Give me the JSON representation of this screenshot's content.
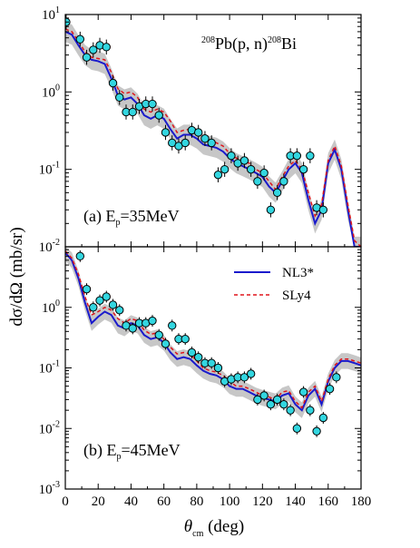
{
  "figure": {
    "title": "²⁰⁸Pb(p, n)²⁰⁸Bi",
    "ylabel": "dσ/dΩ (mb/sr)",
    "xlabel": "θcm (deg)",
    "xlabel_parts": {
      "theta": "θ",
      "sub": "cm",
      "unit": " (deg)"
    },
    "title_parts": {
      "sup1": "208",
      "main1": "Pb(p, n)",
      "sup2": "208",
      "main2": "Bi"
    }
  },
  "legend": {
    "placement": "top-right of panel b",
    "entries": [
      {
        "name": "NL3*",
        "color": "#1a1acc",
        "style": "solid"
      },
      {
        "name": "SLy4",
        "color": "#e0151b",
        "style": "dashed"
      }
    ]
  },
  "colors": {
    "band": "#bdbdbd",
    "points_fill": "#33d6e0",
    "points_stroke": "#000000",
    "nl3": "#1a1acc",
    "sly4": "#e0151b"
  },
  "chart_data": [
    {
      "type": "scatter",
      "panel_label": "(a) Ep=35MeV",
      "panel_parts": {
        "pre": "(a)  E",
        "sub": "p",
        "post": "=35MeV"
      },
      "xlabel": "θcm (deg)",
      "ylabel": "dσ/dΩ (mb/sr)",
      "xlim": [
        0,
        180
      ],
      "ylim": [
        0.01,
        10
      ],
      "yscale": "log",
      "x_ticks": [
        0,
        20,
        40,
        60,
        80,
        100,
        120,
        140,
        160,
        180
      ],
      "x_tick_labels": [],
      "y_ticks": [
        {
          "base": "10",
          "exp": "-2"
        },
        {
          "base": "10",
          "exp": "-1"
        },
        {
          "base": "10",
          "exp": "0"
        },
        {
          "base": "10",
          "exp": "1"
        }
      ],
      "grid": false,
      "data": {
        "x": [
          0.5,
          9,
          13,
          17,
          21,
          25,
          29,
          33,
          37,
          41,
          45,
          49,
          53,
          57,
          61,
          65,
          69,
          73,
          77,
          81,
          85,
          89,
          93,
          97,
          101,
          105,
          109,
          113,
          117,
          121,
          125,
          129,
          133,
          137,
          141,
          145,
          149,
          153,
          157
        ],
        "y": [
          8.0,
          4.8,
          2.8,
          3.5,
          4.0,
          3.8,
          1.3,
          0.85,
          0.55,
          0.55,
          0.65,
          0.7,
          0.7,
          0.5,
          0.3,
          0.22,
          0.2,
          0.22,
          0.32,
          0.3,
          0.25,
          0.22,
          0.085,
          0.1,
          0.15,
          0.12,
          0.13,
          0.1,
          0.07,
          0.09,
          0.03,
          0.05,
          0.07,
          0.15,
          0.15,
          0.1,
          0.15,
          0.032,
          0.03
        ]
      },
      "series": [
        {
          "name": "NL3*",
          "x": [
            0,
            4,
            8,
            12,
            16,
            20,
            24,
            28,
            32,
            36,
            40,
            44,
            48,
            52,
            56,
            60,
            64,
            68,
            72,
            76,
            80,
            84,
            88,
            92,
            96,
            100,
            104,
            108,
            112,
            116,
            120,
            124,
            128,
            132,
            136,
            140,
            144,
            148,
            152,
            156,
            160,
            164,
            168,
            172,
            176,
            180
          ],
          "y": [
            6.0,
            5.5,
            4.0,
            3.0,
            2.6,
            2.5,
            2.3,
            1.5,
            0.9,
            0.8,
            0.85,
            0.7,
            0.5,
            0.45,
            0.5,
            0.45,
            0.33,
            0.25,
            0.28,
            0.28,
            0.25,
            0.21,
            0.2,
            0.19,
            0.17,
            0.14,
            0.12,
            0.11,
            0.1,
            0.09,
            0.08,
            0.06,
            0.05,
            0.07,
            0.1,
            0.12,
            0.09,
            0.04,
            0.02,
            0.03,
            0.12,
            0.18,
            0.1,
            0.03,
            0.01,
            0.01
          ]
        },
        {
          "name": "SLy4",
          "x": [
            0,
            4,
            8,
            12,
            16,
            20,
            24,
            28,
            32,
            36,
            40,
            44,
            48,
            52,
            56,
            60,
            64,
            68,
            72,
            76,
            80,
            84,
            88,
            92,
            96,
            100,
            104,
            108,
            112,
            116,
            120,
            124,
            128,
            132,
            136,
            140,
            144,
            148,
            152,
            156,
            160,
            164,
            168,
            172,
            176,
            180
          ],
          "y": [
            6.5,
            6.0,
            4.5,
            3.3,
            2.8,
            2.7,
            2.6,
            1.8,
            1.1,
            0.95,
            1.0,
            0.85,
            0.6,
            0.55,
            0.6,
            0.55,
            0.42,
            0.3,
            0.32,
            0.33,
            0.3,
            0.26,
            0.24,
            0.22,
            0.2,
            0.16,
            0.14,
            0.13,
            0.12,
            0.1,
            0.09,
            0.07,
            0.055,
            0.08,
            0.11,
            0.13,
            0.1,
            0.05,
            0.025,
            0.035,
            0.13,
            0.2,
            0.11,
            0.035,
            0.012,
            0.01
          ]
        }
      ]
    },
    {
      "type": "scatter",
      "panel_label": "(b) Ep=45MeV",
      "panel_parts": {
        "pre": "(b)  E",
        "sub": "p",
        "post": "=45MeV"
      },
      "xlabel": "θcm (deg)",
      "ylabel": "dσ/dΩ (mb/sr)",
      "xlim": [
        0,
        180
      ],
      "ylim": [
        0.001,
        10
      ],
      "yscale": "log",
      "x_ticks": [
        0,
        20,
        40,
        60,
        80,
        100,
        120,
        140,
        160,
        180
      ],
      "x_tick_labels": [
        "0",
        "20",
        "40",
        "60",
        "80",
        "100",
        "120",
        "140",
        "160",
        "180"
      ],
      "y_ticks": [
        {
          "base": "10",
          "exp": "-3"
        },
        {
          "base": "10",
          "exp": "-2"
        },
        {
          "base": "10",
          "exp": "-1"
        },
        {
          "base": "10",
          "exp": "0"
        }
      ],
      "grid": false,
      "data": {
        "x": [
          9,
          13,
          17,
          21,
          25,
          29,
          33,
          37,
          41,
          45,
          49,
          53,
          57,
          61,
          65,
          69,
          73,
          77,
          81,
          85,
          89,
          93,
          97,
          101,
          105,
          109,
          113,
          117,
          121,
          125,
          129,
          133,
          137,
          141,
          145,
          149,
          153,
          157,
          161,
          165
        ],
        "y": [
          7.0,
          2.0,
          1.0,
          1.3,
          1.5,
          1.1,
          0.9,
          0.5,
          0.45,
          0.55,
          0.55,
          0.6,
          0.35,
          0.25,
          0.5,
          0.3,
          0.3,
          0.18,
          0.15,
          0.12,
          0.12,
          0.1,
          0.06,
          0.065,
          0.07,
          0.07,
          0.08,
          0.03,
          0.035,
          0.025,
          0.03,
          0.025,
          0.02,
          0.01,
          0.04,
          0.02,
          0.009,
          0.015,
          0.045,
          0.07
        ]
      },
      "series": [
        {
          "name": "NL3*",
          "x": [
            0,
            4,
            8,
            12,
            16,
            20,
            24,
            28,
            32,
            36,
            40,
            44,
            48,
            52,
            56,
            60,
            64,
            68,
            72,
            76,
            80,
            84,
            88,
            92,
            96,
            100,
            104,
            108,
            112,
            116,
            120,
            124,
            128,
            132,
            136,
            140,
            144,
            148,
            152,
            156,
            160,
            164,
            168,
            172,
            176,
            180
          ],
          "y": [
            8.0,
            6.0,
            3.0,
            1.2,
            0.55,
            0.7,
            0.85,
            0.75,
            0.5,
            0.45,
            0.55,
            0.5,
            0.35,
            0.3,
            0.32,
            0.26,
            0.18,
            0.14,
            0.15,
            0.14,
            0.11,
            0.09,
            0.08,
            0.075,
            0.065,
            0.05,
            0.045,
            0.045,
            0.04,
            0.035,
            0.032,
            0.03,
            0.028,
            0.035,
            0.038,
            0.025,
            0.02,
            0.035,
            0.045,
            0.025,
            0.06,
            0.1,
            0.13,
            0.13,
            0.12,
            0.11
          ]
        },
        {
          "name": "SLy4",
          "x": [
            0,
            4,
            8,
            12,
            16,
            20,
            24,
            28,
            32,
            36,
            40,
            44,
            48,
            52,
            56,
            60,
            64,
            68,
            72,
            76,
            80,
            84,
            88,
            92,
            96,
            100,
            104,
            108,
            112,
            116,
            120,
            124,
            128,
            132,
            136,
            140,
            144,
            148,
            152,
            156,
            160,
            164,
            168,
            172,
            176,
            180
          ],
          "y": [
            8.5,
            6.5,
            3.5,
            1.5,
            0.75,
            0.85,
            1.0,
            0.9,
            0.65,
            0.55,
            0.65,
            0.6,
            0.42,
            0.36,
            0.38,
            0.3,
            0.22,
            0.17,
            0.18,
            0.17,
            0.13,
            0.1,
            0.09,
            0.085,
            0.075,
            0.06,
            0.05,
            0.05,
            0.045,
            0.04,
            0.035,
            0.033,
            0.03,
            0.04,
            0.042,
            0.028,
            0.022,
            0.04,
            0.05,
            0.028,
            0.065,
            0.11,
            0.14,
            0.14,
            0.13,
            0.12
          ]
        }
      ]
    }
  ]
}
